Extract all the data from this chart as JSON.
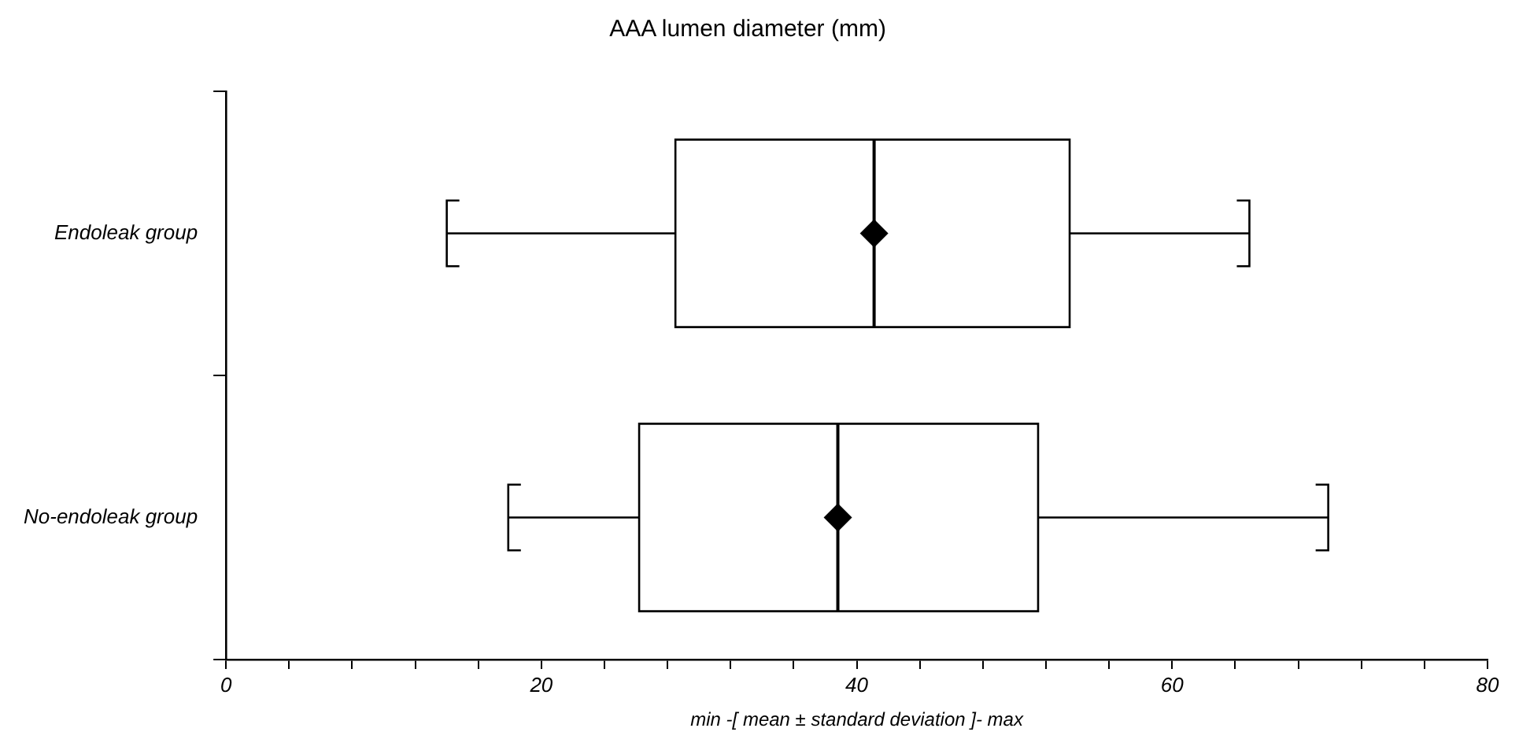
{
  "chart_data": {
    "type": "box",
    "title": "AAA lumen diameter (mm)",
    "xlabel": "min -[ mean ± standard deviation ]- max",
    "orientation": "horizontal",
    "categories": [
      "Endoleak group",
      "No-endoleak group"
    ],
    "boxes": [
      {
        "low": 14.0,
        "q1": 28.5,
        "median": 41.1,
        "q3": 53.5,
        "high": 64.9,
        "mean": 41.1
      },
      {
        "low": 17.9,
        "q1": 26.2,
        "median": 38.8,
        "q3": 51.5,
        "high": 69.9,
        "mean": 38.8
      }
    ],
    "xlim": [
      0,
      80
    ],
    "xticks": [
      0,
      {
        "value": 4,
        "label": null
      },
      {
        "value": 8,
        "label": null
      },
      {
        "value": 12,
        "label": null
      },
      {
        "value": 16,
        "label": null
      },
      20,
      {
        "value": 24,
        "label": null
      },
      {
        "value": 28,
        "label": null
      },
      {
        "value": 32,
        "label": null
      },
      {
        "value": 36,
        "label": null
      },
      40,
      {
        "value": 44,
        "label": null
      },
      {
        "value": 48,
        "label": null
      },
      {
        "value": 52,
        "label": null
      },
      {
        "value": 56,
        "label": null
      },
      60,
      {
        "value": 64,
        "label": null
      },
      {
        "value": 68,
        "label": null
      },
      {
        "value": 72,
        "label": null
      },
      {
        "value": 76,
        "label": null
      },
      80
    ],
    "marker": "diamond",
    "grid": false,
    "legend": false
  }
}
